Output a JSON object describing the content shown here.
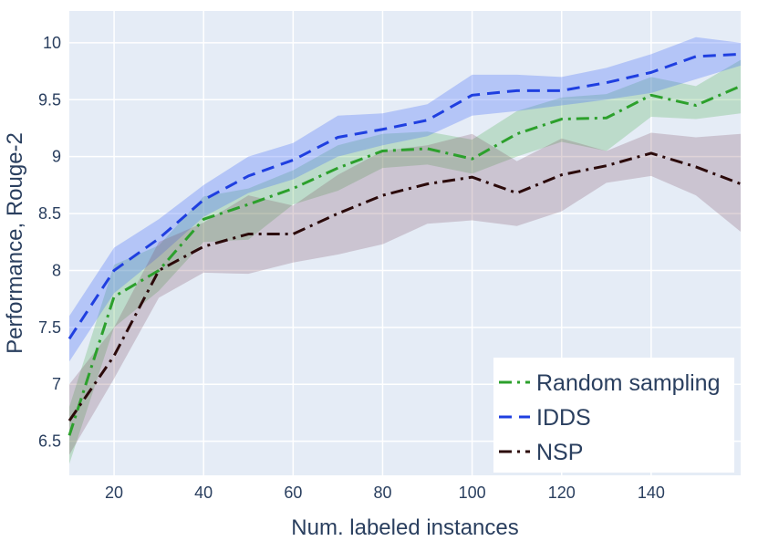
{
  "chart_data": {
    "type": "line",
    "xlabel": "Num. labeled instances",
    "ylabel": "Performance, Rouge-2",
    "xlim": [
      10,
      160
    ],
    "ylim": [
      6.2,
      10.28
    ],
    "xticks": [
      20,
      40,
      60,
      80,
      100,
      120,
      140
    ],
    "yticks": [
      6.5,
      7,
      7.5,
      8,
      8.5,
      9,
      9.5,
      10
    ],
    "yticklabels": [
      "6.5",
      "7",
      "7.5",
      "8",
      "8.5",
      "9",
      "9.5",
      "10"
    ],
    "x": [
      10,
      20,
      30,
      40,
      50,
      60,
      70,
      80,
      90,
      100,
      110,
      120,
      130,
      140,
      150,
      160
    ],
    "legend_position": "bottom-right",
    "plot_background": "#e5ecf6",
    "grid": true,
    "series": [
      {
        "name": "Random sampling",
        "color": "#2ca02c",
        "band_color": "rgba(44,160,44,0.22)",
        "dash": "dashdot",
        "values": [
          6.55,
          7.77,
          8.0,
          8.45,
          8.58,
          8.72,
          8.9,
          9.05,
          9.07,
          8.98,
          9.2,
          9.33,
          9.34,
          9.54,
          9.45,
          9.62
        ],
        "lower": [
          6.3,
          7.5,
          7.82,
          8.25,
          8.27,
          8.58,
          8.7,
          8.9,
          8.93,
          8.85,
          9.0,
          9.13,
          9.05,
          9.35,
          9.33,
          9.38
        ],
        "upper": [
          6.8,
          8.05,
          8.22,
          8.65,
          8.72,
          8.88,
          9.1,
          9.2,
          9.22,
          9.15,
          9.4,
          9.52,
          9.55,
          9.7,
          9.62,
          9.85
        ]
      },
      {
        "name": "IDDS",
        "color": "#1f3fe0",
        "band_color": "rgba(65,105,250,0.30)",
        "dash": "dash",
        "values": [
          7.4,
          8.0,
          8.28,
          8.62,
          8.83,
          8.97,
          9.17,
          9.24,
          9.32,
          9.54,
          9.58,
          9.58,
          9.65,
          9.74,
          9.88,
          9.9
        ],
        "lower": [
          7.2,
          7.8,
          8.12,
          8.47,
          8.68,
          8.8,
          9.0,
          9.1,
          9.18,
          9.36,
          9.4,
          9.45,
          9.5,
          9.56,
          9.68,
          9.8
        ],
        "upper": [
          7.6,
          8.2,
          8.45,
          8.75,
          9.0,
          9.12,
          9.36,
          9.38,
          9.46,
          9.72,
          9.72,
          9.7,
          9.78,
          9.9,
          10.05,
          10.0
        ]
      },
      {
        "name": "NSP",
        "color": "#2b0a0a",
        "band_color": "rgba(120,70,90,0.24)",
        "dash": "dashdot",
        "values": [
          6.68,
          7.25,
          8.0,
          8.21,
          8.32,
          8.32,
          8.5,
          8.66,
          8.76,
          8.82,
          8.68,
          8.84,
          8.92,
          9.03,
          8.91,
          8.76
        ],
        "lower": [
          6.38,
          7.05,
          7.76,
          7.98,
          7.97,
          8.07,
          8.14,
          8.23,
          8.41,
          8.44,
          8.39,
          8.52,
          8.77,
          8.83,
          8.66,
          8.34
        ],
        "upper": [
          7.0,
          7.5,
          8.25,
          8.42,
          8.66,
          8.57,
          8.84,
          9.05,
          9.1,
          9.2,
          8.96,
          9.16,
          9.05,
          9.21,
          9.17,
          9.2
        ]
      }
    ]
  }
}
